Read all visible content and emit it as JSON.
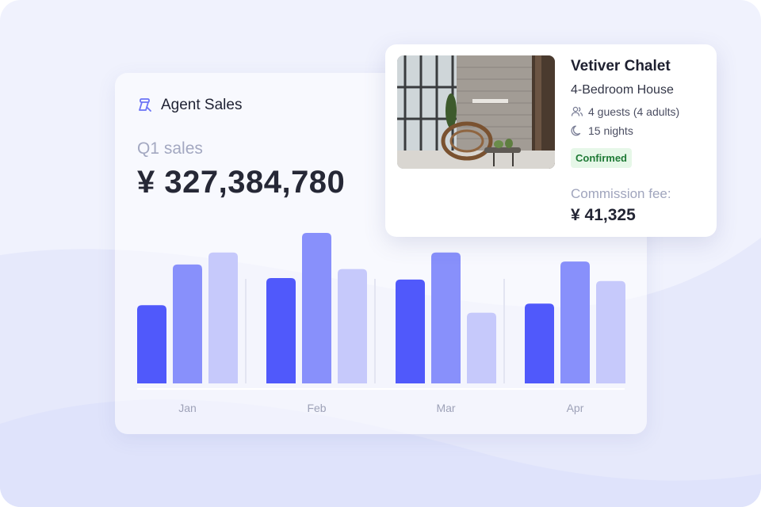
{
  "sales_card": {
    "title": "Agent Sales",
    "period_label": "Q1 sales",
    "total": "¥ 327,384,780"
  },
  "booking": {
    "property_name": "Vetiver Chalet",
    "property_type": "4-Bedroom House",
    "guests": "4 guests (4 adults)",
    "nights": "15 nights",
    "status": "Confirmed",
    "fee_label": "Commission fee:",
    "fee_value": "¥ 41,325"
  },
  "icons": {
    "agent": "agent-sales-icon",
    "guests": "users-icon",
    "nights": "moon-icon"
  },
  "colors": {
    "series_1": "#5059fb",
    "series_2": "#8890fb",
    "series_3": "#c6c9fb",
    "status_bg": "#e6f7e8",
    "status_text": "#1f7a36"
  },
  "chart_data": {
    "type": "bar",
    "categories": [
      "Jan",
      "Feb",
      "Mar",
      "Apr"
    ],
    "series": [
      {
        "values": [
          52,
          70,
          69,
          53
        ]
      },
      {
        "values": [
          79,
          100,
          87,
          81
        ]
      },
      {
        "values": [
          87,
          76,
          47,
          68
        ]
      }
    ],
    "ylim": [
      0,
      100
    ],
    "grid": false,
    "legend": "none",
    "title": "",
    "xlabel": "",
    "ylabel": ""
  }
}
